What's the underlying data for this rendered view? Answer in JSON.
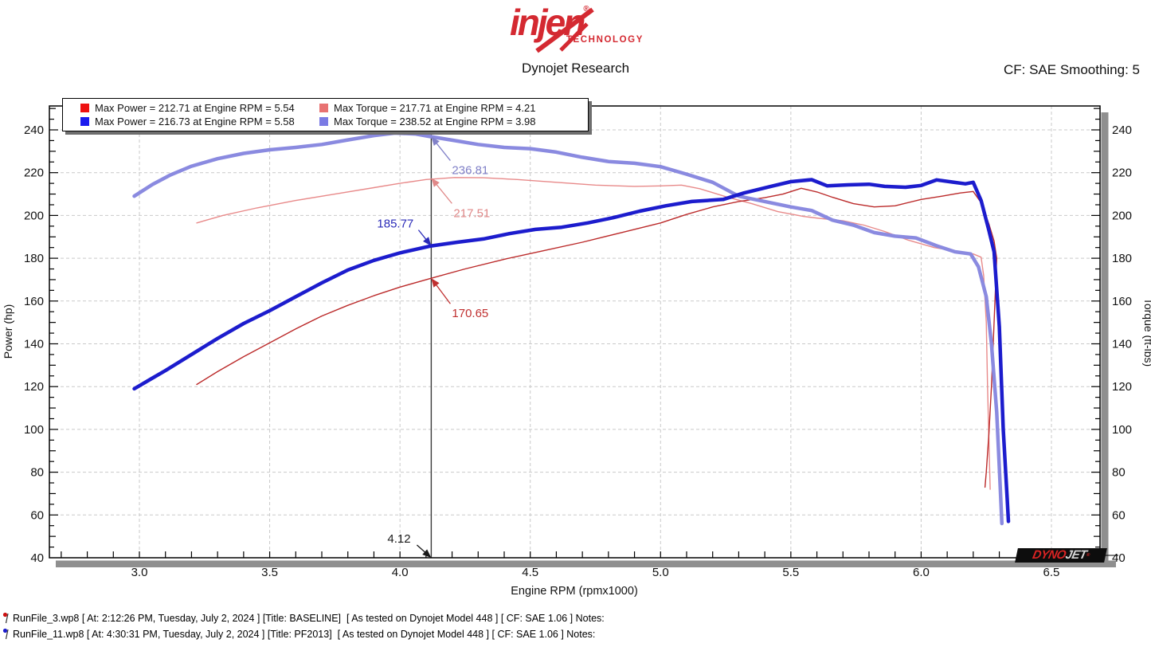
{
  "header": {
    "brand": "injen",
    "brand_reg": "®",
    "brand_sub": "TECHNOLOGY",
    "subtitle": "Dynojet Research",
    "smoothing": "CF: SAE Smoothing: 5"
  },
  "legend": {
    "items": [
      {
        "label": "Max Power = 212.71 at Engine RPM = 5.54",
        "color": "#ee1111"
      },
      {
        "label": "Max Torque = 217.71 at Engine RPM = 4.21",
        "color": "#e87272"
      },
      {
        "label": "Max Power = 216.73 at Engine RPM = 5.58",
        "color": "#1b1bee"
      },
      {
        "label": "Max Torque = 238.52 at Engine RPM = 3.98",
        "color": "#7b7be4"
      }
    ]
  },
  "chart_data": {
    "type": "line",
    "xlabel": "Engine RPM (rpmx1000)",
    "ylabel_left": "Power (hp)",
    "ylabel_right": "Torque (ft-lbs)",
    "xlim": [
      2.654,
      6.687
    ],
    "ylim": [
      40,
      251
    ],
    "x_tick_values": [
      3.0,
      3.5,
      4.0,
      4.5,
      5.0,
      5.5,
      6.0,
      6.5
    ],
    "x_tick_labels": [
      "3.0",
      "3.5",
      "4.0",
      "4.5",
      "5.0",
      "5.5",
      "6.0",
      "6.5"
    ],
    "y_tick_values": [
      40,
      60,
      80,
      100,
      120,
      140,
      160,
      180,
      200,
      220,
      240
    ],
    "y_tick_labels": [
      "40",
      "60",
      "80",
      "100",
      "120",
      "140",
      "160",
      "180",
      "200",
      "220",
      "240"
    ],
    "grid": true,
    "cursor": {
      "rpm": 4.12,
      "color": "#3a3a3a"
    },
    "series": [
      {
        "name": "torque-baseline",
        "color": "#e88a8a",
        "width": 1.4,
        "points": [
          [
            3.22,
            196.5
          ],
          [
            3.32,
            200
          ],
          [
            3.45,
            203.5
          ],
          [
            3.6,
            207
          ],
          [
            3.75,
            210
          ],
          [
            3.9,
            213
          ],
          [
            4.0,
            215
          ],
          [
            4.1,
            216.8
          ],
          [
            4.21,
            217.71
          ],
          [
            4.32,
            217.6
          ],
          [
            4.45,
            216.8
          ],
          [
            4.6,
            215.5
          ],
          [
            4.75,
            214.2
          ],
          [
            4.9,
            213.6
          ],
          [
            5.0,
            213.8
          ],
          [
            5.08,
            214.2
          ],
          [
            5.15,
            212.5
          ],
          [
            5.25,
            208.8
          ],
          [
            5.35,
            205.5
          ],
          [
            5.45,
            201.8
          ],
          [
            5.55,
            199.5
          ],
          [
            5.62,
            198.5
          ],
          [
            5.7,
            197.5
          ],
          [
            5.78,
            195.5
          ],
          [
            5.86,
            192.5
          ],
          [
            5.95,
            188.5
          ],
          [
            6.05,
            185
          ],
          [
            6.15,
            183
          ],
          [
            6.2,
            182
          ],
          [
            6.23,
            180.5
          ],
          [
            6.24,
            172
          ],
          [
            6.25,
            150
          ],
          [
            6.255,
            120
          ],
          [
            6.26,
            95
          ],
          [
            6.265,
            72
          ]
        ]
      },
      {
        "name": "power-baseline",
        "color": "#bb2a2a",
        "width": 1.4,
        "points": [
          [
            3.22,
            121
          ],
          [
            3.3,
            127
          ],
          [
            3.4,
            134
          ],
          [
            3.5,
            140.5
          ],
          [
            3.6,
            147
          ],
          [
            3.7,
            153
          ],
          [
            3.8,
            158
          ],
          [
            3.9,
            162.5
          ],
          [
            4.0,
            166.5
          ],
          [
            4.12,
            170.65
          ],
          [
            4.25,
            175
          ],
          [
            4.4,
            179.5
          ],
          [
            4.55,
            183.5
          ],
          [
            4.7,
            187.5
          ],
          [
            4.85,
            192
          ],
          [
            5.0,
            196.5
          ],
          [
            5.1,
            200.5
          ],
          [
            5.2,
            204
          ],
          [
            5.3,
            206.5
          ],
          [
            5.4,
            208.3
          ],
          [
            5.47,
            210
          ],
          [
            5.54,
            212.71
          ],
          [
            5.6,
            211
          ],
          [
            5.66,
            208.5
          ],
          [
            5.74,
            205.5
          ],
          [
            5.82,
            204
          ],
          [
            5.9,
            204.5
          ],
          [
            6.0,
            207.5
          ],
          [
            6.08,
            209
          ],
          [
            6.15,
            210.5
          ],
          [
            6.2,
            211.2
          ],
          [
            6.23,
            206
          ],
          [
            6.26,
            196
          ],
          [
            6.28,
            188
          ],
          [
            6.29,
            180
          ],
          [
            6.28,
            150
          ],
          [
            6.27,
            120
          ],
          [
            6.26,
            98
          ],
          [
            6.25,
            80
          ],
          [
            6.245,
            73
          ]
        ]
      },
      {
        "name": "torque-new",
        "color": "#8a8ae0",
        "width": 4.5,
        "points": [
          [
            2.98,
            209
          ],
          [
            3.05,
            214.5
          ],
          [
            3.12,
            219
          ],
          [
            3.2,
            223
          ],
          [
            3.3,
            226.5
          ],
          [
            3.4,
            229
          ],
          [
            3.5,
            230.7
          ],
          [
            3.6,
            231.8
          ],
          [
            3.7,
            233.2
          ],
          [
            3.8,
            235.3
          ],
          [
            3.9,
            237.3
          ],
          [
            3.98,
            238.52
          ],
          [
            4.06,
            238.1
          ],
          [
            4.12,
            236.81
          ],
          [
            4.2,
            235.2
          ],
          [
            4.3,
            233.2
          ],
          [
            4.4,
            231.8
          ],
          [
            4.5,
            231.2
          ],
          [
            4.6,
            229.6
          ],
          [
            4.7,
            227.2
          ],
          [
            4.8,
            225.2
          ],
          [
            4.9,
            224.4
          ],
          [
            5.0,
            222.8
          ],
          [
            5.1,
            219.3
          ],
          [
            5.2,
            215.5
          ],
          [
            5.3,
            209
          ],
          [
            5.4,
            206.5
          ],
          [
            5.5,
            204
          ],
          [
            5.58,
            202.3
          ],
          [
            5.66,
            197.8
          ],
          [
            5.74,
            195.5
          ],
          [
            5.82,
            192
          ],
          [
            5.9,
            190.3
          ],
          [
            5.98,
            189.5
          ],
          [
            6.06,
            185.8
          ],
          [
            6.13,
            183
          ],
          [
            6.19,
            182
          ],
          [
            6.22,
            176
          ],
          [
            6.25,
            162
          ],
          [
            6.27,
            140
          ],
          [
            6.29,
            108
          ],
          [
            6.3,
            82
          ],
          [
            6.31,
            56
          ]
        ]
      },
      {
        "name": "power-new",
        "color": "#1c1ccd",
        "width": 4.5,
        "points": [
          [
            2.98,
            119
          ],
          [
            3.05,
            124
          ],
          [
            3.1,
            127.5
          ],
          [
            3.2,
            135
          ],
          [
            3.3,
            142.5
          ],
          [
            3.4,
            149.5
          ],
          [
            3.5,
            155.5
          ],
          [
            3.6,
            162
          ],
          [
            3.7,
            168.5
          ],
          [
            3.8,
            174.5
          ],
          [
            3.9,
            179
          ],
          [
            4.0,
            182.5
          ],
          [
            4.12,
            185.77
          ],
          [
            4.22,
            187.5
          ],
          [
            4.32,
            189
          ],
          [
            4.42,
            191.5
          ],
          [
            4.52,
            193.5
          ],
          [
            4.62,
            194.5
          ],
          [
            4.72,
            196.5
          ],
          [
            4.82,
            199
          ],
          [
            4.92,
            202
          ],
          [
            5.02,
            204.5
          ],
          [
            5.12,
            206.5
          ],
          [
            5.24,
            207.5
          ],
          [
            5.32,
            210.5
          ],
          [
            5.42,
            213.5
          ],
          [
            5.5,
            215.8
          ],
          [
            5.58,
            216.73
          ],
          [
            5.64,
            213.8
          ],
          [
            5.72,
            214.3
          ],
          [
            5.8,
            214.6
          ],
          [
            5.86,
            213.6
          ],
          [
            5.94,
            213.2
          ],
          [
            6.0,
            214
          ],
          [
            6.06,
            216.6
          ],
          [
            6.12,
            215.6
          ],
          [
            6.17,
            214.8
          ],
          [
            6.2,
            215.5
          ],
          [
            6.23,
            207
          ],
          [
            6.26,
            193
          ],
          [
            6.28,
            183
          ],
          [
            6.3,
            148
          ],
          [
            6.315,
            100
          ],
          [
            6.33,
            68
          ],
          [
            6.335,
            57
          ]
        ]
      }
    ],
    "annotations": [
      {
        "text": "236.81",
        "color": "#8181c8",
        "rpm": 4.12,
        "value": 236.81,
        "label_at": [
          26,
          47
        ],
        "arrow_from": [
          24,
          30
        ],
        "anchor": "start"
      },
      {
        "text": "217.51",
        "color": "#e08888",
        "rpm": 4.12,
        "value": 217.51,
        "label_at": [
          28,
          49
        ],
        "arrow_from": [
          26,
          32
        ],
        "anchor": "start"
      },
      {
        "text": "185.77",
        "color": "#2a2ab8",
        "rpm": 4.12,
        "value": 185.77,
        "label_at": [
          -68,
          -23
        ],
        "arrow_from": [
          -16,
          -20
        ],
        "anchor": "end2"
      },
      {
        "text": "170.65",
        "color": "#c03030",
        "rpm": 4.12,
        "value": 170.65,
        "label_at": [
          26,
          49
        ],
        "arrow_from": [
          24,
          32
        ],
        "anchor": "start"
      },
      {
        "text": "4.12",
        "color": "#1a1a1a",
        "rpm": 4.12,
        "value": 40,
        "label_at": [
          -55,
          -19
        ],
        "arrow_from": [
          -18,
          -16
        ],
        "anchor": "start"
      }
    ]
  },
  "watermark": {
    "dyno": "DYNO",
    "jet": "JET",
    "reg": "®"
  },
  "footer": {
    "runs": [
      {
        "flag_color": "#cc1111",
        "text": "RunFile_3.wp8 [ At: 2:12:26 PM, Tuesday, July 2, 2024 ] [Title: BASELINE]  [ As tested on Dynojet Model 448 ] [ CF: SAE 1.06 ] Notes:"
      },
      {
        "flag_color": "#1c1ccc",
        "text": "RunFile_11.wp8 [ At: 4:30:31 PM, Tuesday, July 2, 2024 ] [Title: PF2013]  [ As tested on Dynojet Model 448 ] [ CF: SAE 1.06 ] Notes:"
      }
    ]
  }
}
